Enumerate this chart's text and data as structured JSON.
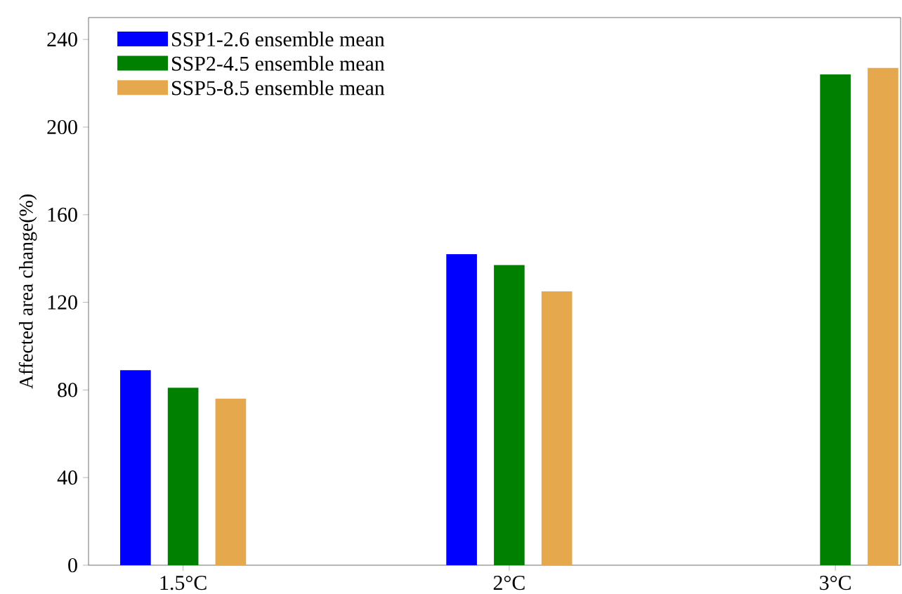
{
  "chart_data": {
    "type": "bar",
    "ylabel": "Affected area change(%)",
    "categories": [
      "1.5°C",
      "2°C",
      "3°C"
    ],
    "series": [
      {
        "name": "SSP1-2.6 ensemble mean",
        "color": "#0000ff",
        "values": [
          89,
          142,
          null
        ]
      },
      {
        "name": "SSP2-4.5 ensemble mean",
        "color": "#008000",
        "values": [
          81,
          137,
          224
        ]
      },
      {
        "name": "SSP5-8.5 ensemble mean",
        "color": "#e5a84d",
        "values": [
          76,
          125,
          227
        ]
      }
    ],
    "ylim": [
      0,
      250
    ],
    "yticks": [
      0,
      40,
      80,
      120,
      160,
      200,
      240
    ],
    "legend": "top left"
  }
}
